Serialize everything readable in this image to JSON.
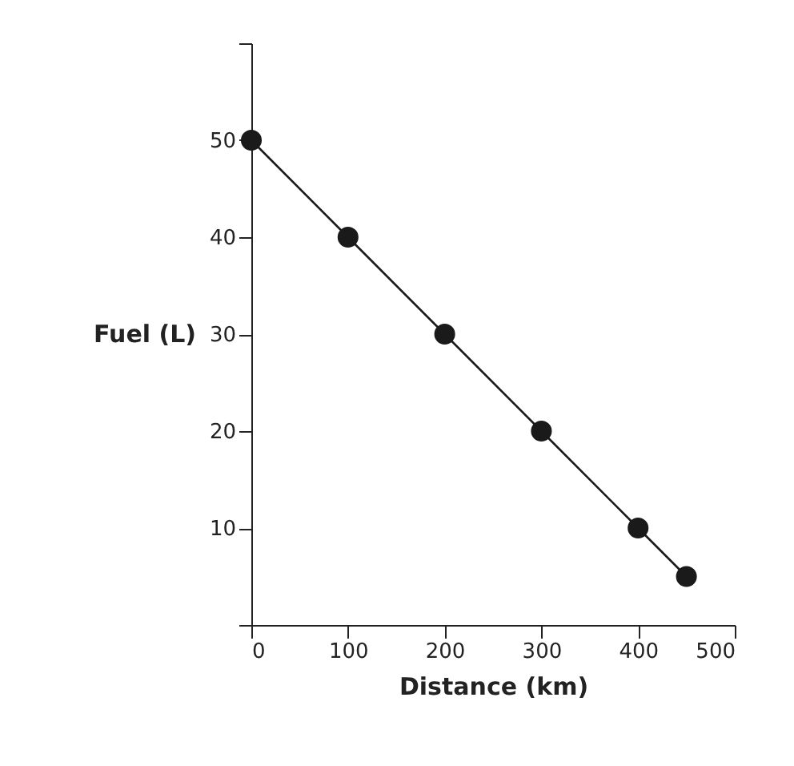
{
  "chart_data": {
    "type": "line",
    "xlabel": "Distance (km)",
    "ylabel": "Fuel (L)",
    "x": [
      0,
      100,
      200,
      300,
      400,
      450
    ],
    "series": [
      {
        "color": "#1a1a1a",
        "values": [
          50,
          40,
          30,
          20,
          10,
          5
        ]
      }
    ],
    "xlim": [
      0,
      500
    ],
    "xticks": [
      0,
      100,
      200,
      300,
      400,
      500
    ],
    "ylim": [
      0,
      60
    ],
    "yticks": [
      {
        "value": 0,
        "label": null
      },
      10,
      20,
      30,
      40,
      50,
      {
        "value": 60,
        "label": null
      }
    ],
    "marker": "circle",
    "line_style": "solid",
    "grid": false
  }
}
